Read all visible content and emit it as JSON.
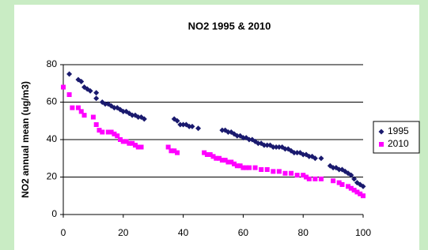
{
  "chart_data": {
    "type": "scatter",
    "title": "NO2 1995 & 2010",
    "y_label": "NO2 annual mean (ug/m3)",
    "xlim": [
      0,
      100
    ],
    "xticks": [
      0,
      20,
      40,
      60,
      80,
      100
    ],
    "ylim": [
      0,
      80
    ],
    "yticks": [
      0,
      20,
      40,
      60,
      80
    ],
    "grid": true,
    "legend": "right",
    "series": [
      {
        "name": "1995",
        "color": "#1a1a6e",
        "marker": "diamond",
        "x": [
          2,
          5,
          6,
          7,
          8,
          9,
          11,
          11,
          13,
          14,
          15,
          16,
          17,
          18,
          19,
          20,
          21,
          22,
          23,
          24,
          25,
          26,
          27,
          37,
          38,
          39,
          40,
          41,
          42,
          43,
          45,
          53,
          54,
          55,
          56,
          57,
          58,
          59,
          60,
          61,
          62,
          63,
          64,
          65,
          66,
          67,
          68,
          69,
          70,
          71,
          72,
          73,
          74,
          75,
          76,
          77,
          78,
          79,
          80,
          81,
          82,
          83,
          84,
          86,
          89,
          90,
          91,
          92,
          93,
          94,
          95,
          96,
          97,
          98,
          99,
          100
        ],
        "values": [
          75,
          72,
          71,
          68,
          67,
          66,
          65,
          62,
          60,
          59,
          59,
          58,
          57,
          57,
          56,
          55,
          55,
          54,
          53,
          53,
          52,
          52,
          51,
          51,
          50,
          48,
          48,
          48,
          47,
          47,
          46,
          45,
          45,
          44,
          44,
          43,
          42,
          42,
          41,
          41,
          40,
          40,
          39,
          38,
          38,
          37,
          37,
          37,
          36,
          36,
          36,
          36,
          35,
          35,
          34,
          33,
          33,
          33,
          32,
          32,
          31,
          31,
          30,
          30,
          26,
          25,
          25,
          24,
          24,
          23,
          22,
          21,
          19,
          17,
          16,
          15
        ]
      },
      {
        "name": "2010",
        "color": "#ff00ff",
        "marker": "square",
        "x": [
          0,
          2,
          3,
          5,
          6,
          7,
          10,
          11,
          12,
          13,
          15,
          16,
          17,
          18,
          19,
          20,
          21,
          22,
          23,
          24,
          25,
          26,
          35,
          36,
          37,
          38,
          47,
          48,
          49,
          50,
          51,
          52,
          53,
          54,
          55,
          56,
          57,
          58,
          59,
          60,
          61,
          62,
          64,
          66,
          68,
          70,
          72,
          74,
          76,
          78,
          80,
          81,
          82,
          84,
          86,
          90,
          92,
          93,
          95,
          96,
          97,
          98,
          99,
          100
        ],
        "values": [
          68,
          64,
          57,
          57,
          55,
          53,
          52,
          48,
          45,
          44,
          44,
          44,
          43,
          42,
          40,
          39,
          39,
          38,
          38,
          37,
          36,
          36,
          36,
          34,
          34,
          33,
          33,
          32,
          32,
          31,
          30,
          30,
          29,
          29,
          28,
          28,
          27,
          26,
          26,
          25,
          25,
          25,
          25,
          24,
          24,
          23,
          23,
          22,
          22,
          21,
          21,
          20,
          19,
          19,
          19,
          18,
          17,
          16,
          15,
          14,
          13,
          12,
          11,
          10
        ]
      }
    ]
  }
}
